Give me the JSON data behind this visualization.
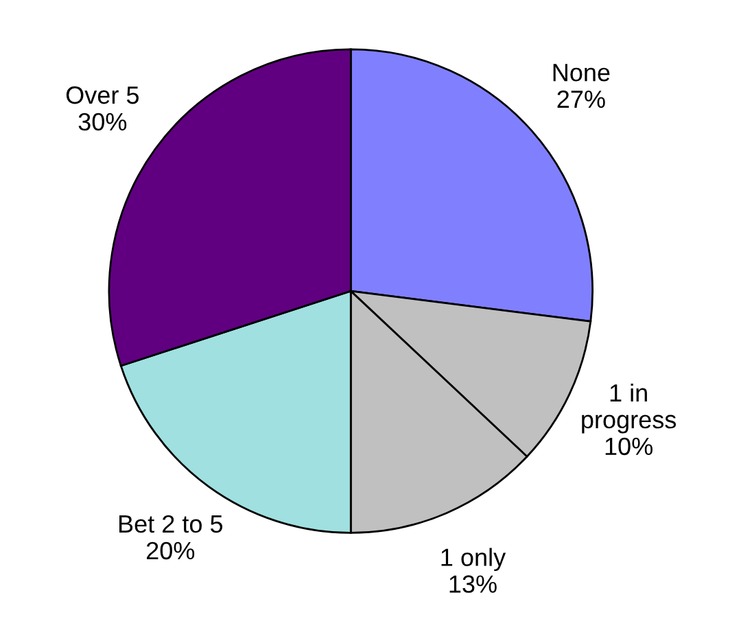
{
  "chart_data": {
    "type": "pie",
    "categories": [
      "None",
      "1 in\nprogress",
      "1 only",
      "Bet 2 to 5",
      "Over 5"
    ],
    "values": [
      27,
      10,
      13,
      20,
      30
    ],
    "value_labels": [
      "27%",
      "10%",
      "13%",
      "20%",
      "30%"
    ],
    "colors": [
      "#8080ff",
      "#c0c0c0",
      "#c0c0c0",
      "#a0e0e0",
      "#600080"
    ],
    "legend": false
  }
}
